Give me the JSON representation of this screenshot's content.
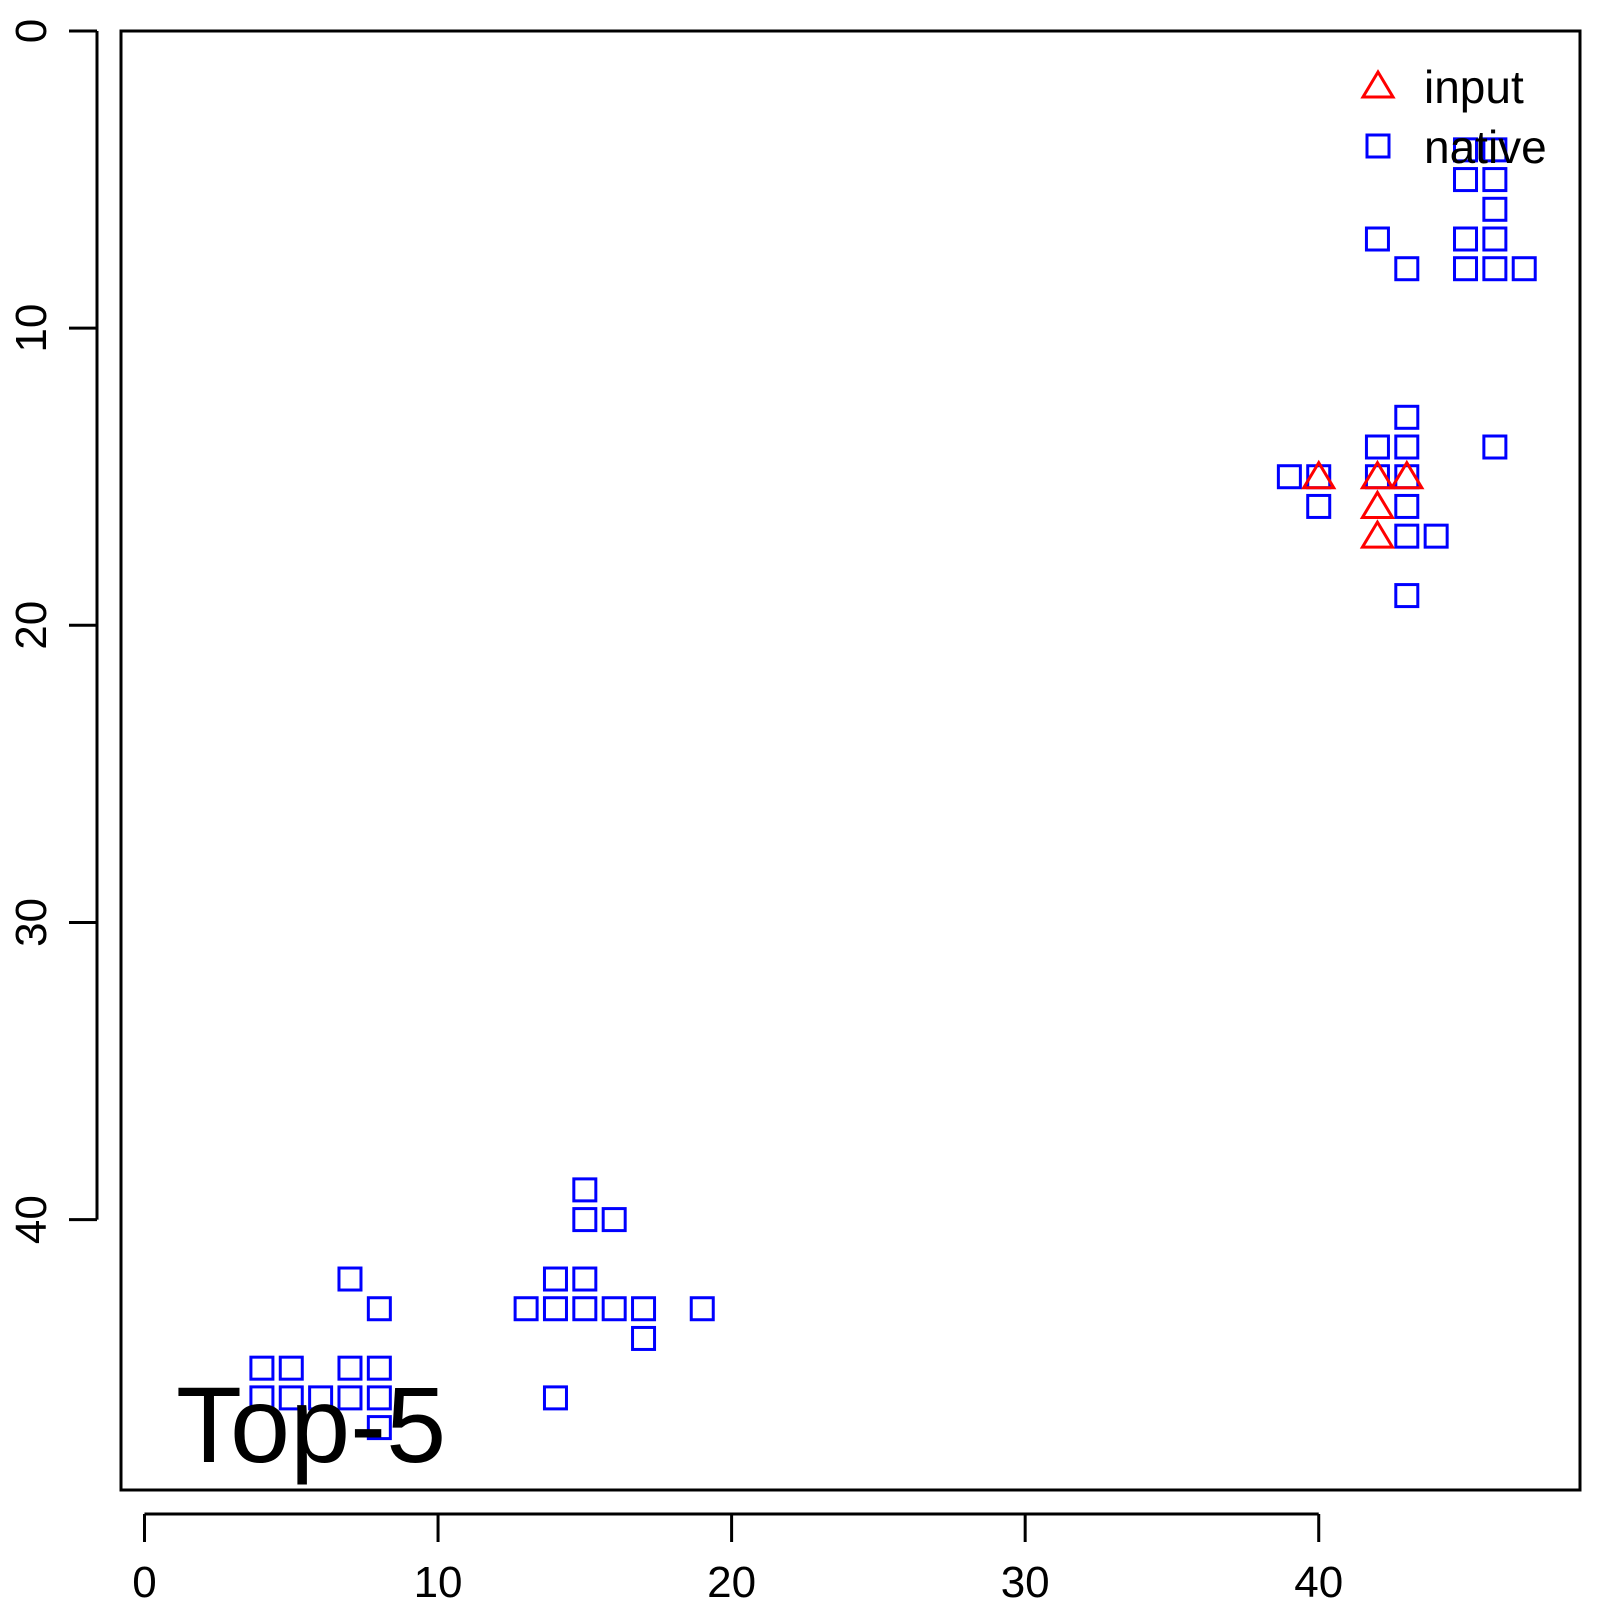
{
  "chart_data": {
    "type": "scatter",
    "title": "",
    "xlabel": "",
    "ylabel": "",
    "xlim": [
      -0.8,
      48.9
    ],
    "ylim": [
      0,
      49.1
    ],
    "y_reversed": true,
    "x_ticks": [
      0,
      10,
      20,
      30,
      40
    ],
    "y_ticks": [
      0,
      10,
      20,
      30,
      40
    ],
    "x_tick_labels": [
      "0",
      "10",
      "20",
      "30",
      "40"
    ],
    "y_tick_labels": [
      "0",
      "10",
      "20",
      "30",
      "40"
    ],
    "annotation": "Top-5",
    "legend": {
      "placement": "top-right"
    },
    "series": [
      {
        "name": "input",
        "marker": "triangle",
        "color": "#ff0000",
        "points": [
          [
            40,
            15
          ],
          [
            42,
            15
          ],
          [
            43,
            15
          ],
          [
            42,
            16
          ],
          [
            42,
            17
          ]
        ]
      },
      {
        "name": "native",
        "marker": "square",
        "color": "#0000ff",
        "points": [
          [
            45,
            4
          ],
          [
            46,
            4
          ],
          [
            45,
            5
          ],
          [
            46,
            5
          ],
          [
            46,
            6
          ],
          [
            42,
            7
          ],
          [
            45,
            7
          ],
          [
            46,
            7
          ],
          [
            43,
            8
          ],
          [
            45,
            8
          ],
          [
            46,
            8
          ],
          [
            47,
            8
          ],
          [
            43,
            13
          ],
          [
            42,
            14
          ],
          [
            43,
            14
          ],
          [
            46,
            14
          ],
          [
            39,
            15
          ],
          [
            40,
            15
          ],
          [
            42,
            15
          ],
          [
            43,
            15
          ],
          [
            40,
            16
          ],
          [
            43,
            16
          ],
          [
            43,
            17
          ],
          [
            44,
            17
          ],
          [
            43,
            19
          ],
          [
            15,
            39
          ],
          [
            15,
            40
          ],
          [
            16,
            40
          ],
          [
            7,
            42
          ],
          [
            14,
            42
          ],
          [
            15,
            42
          ],
          [
            8,
            43
          ],
          [
            13,
            43
          ],
          [
            14,
            43
          ],
          [
            15,
            43
          ],
          [
            16,
            43
          ],
          [
            17,
            43
          ],
          [
            19,
            43
          ],
          [
            17,
            44
          ],
          [
            4,
            45
          ],
          [
            5,
            45
          ],
          [
            7,
            45
          ],
          [
            8,
            45
          ],
          [
            4,
            46
          ],
          [
            5,
            46
          ],
          [
            6,
            46
          ],
          [
            7,
            46
          ],
          [
            8,
            46
          ],
          [
            14,
            46
          ],
          [
            8,
            47
          ]
        ]
      }
    ]
  }
}
